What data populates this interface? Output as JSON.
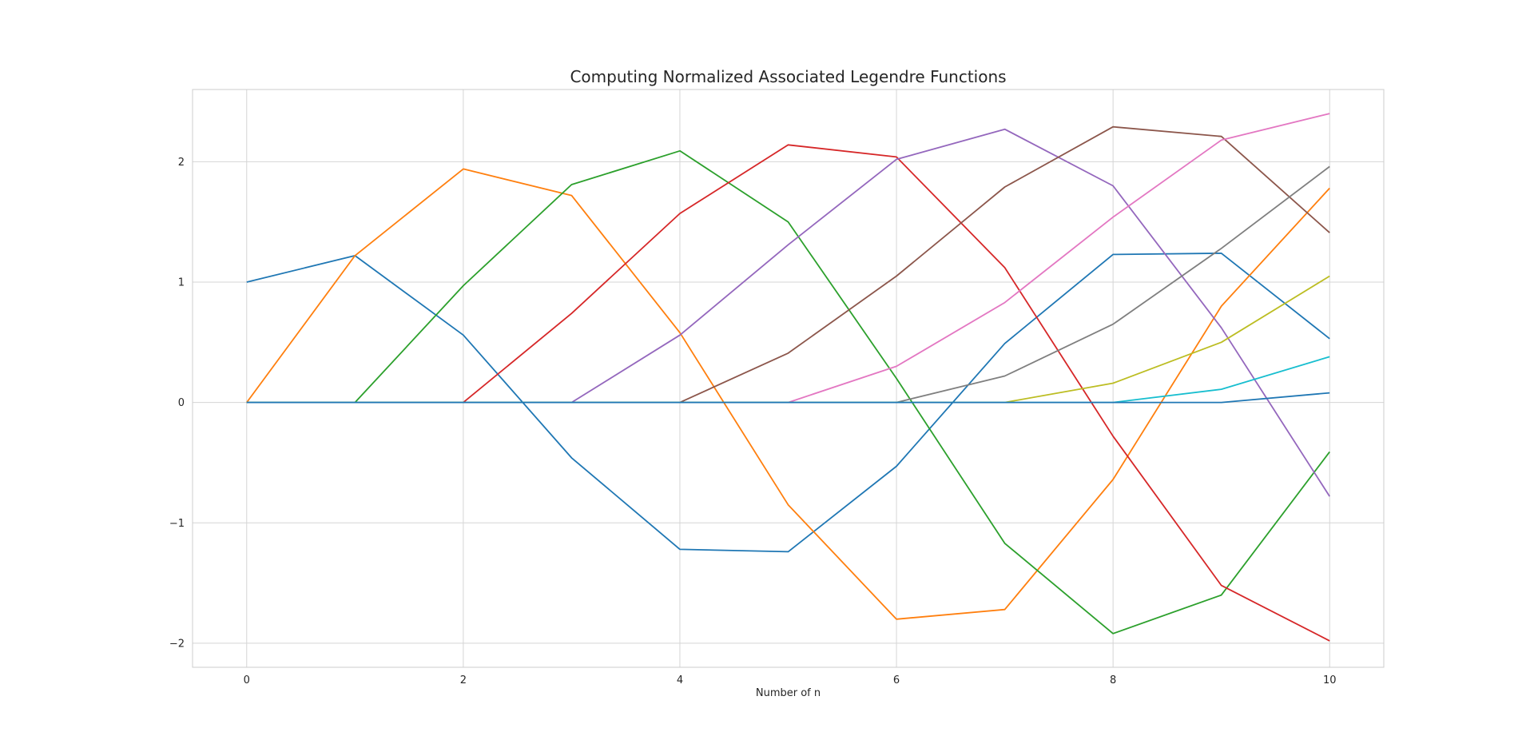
{
  "chart_data": {
    "type": "line",
    "title": "Computing Normalized Associated Legendre Functions",
    "xlabel": "Number of n",
    "ylabel": "",
    "xlim": [
      -0.5,
      10.5
    ],
    "ylim": [
      -2.2,
      2.6
    ],
    "x_ticks": [
      0,
      2,
      4,
      6,
      8,
      10
    ],
    "x_tick_labels": [
      "0",
      "2",
      "4",
      "6",
      "8",
      "10"
    ],
    "y_ticks": [
      -2,
      -1,
      0,
      1,
      2
    ],
    "y_tick_labels": [
      "−2",
      "−1",
      "0",
      "1",
      "2"
    ],
    "grid": true,
    "legend": "none",
    "x": [
      0,
      1,
      2,
      3,
      4,
      5,
      6,
      7,
      8,
      9,
      10
    ],
    "series": [
      {
        "color": "#1f77b4",
        "values": [
          1.0,
          1.22,
          0.56,
          -0.46,
          -1.22,
          -1.24,
          -0.53,
          0.49,
          1.23,
          1.24,
          0.53
        ]
      },
      {
        "color": "#ff7f0e",
        "values": [
          0.0,
          1.22,
          1.94,
          1.72,
          0.58,
          -0.85,
          -1.8,
          -1.72,
          -0.64,
          0.8,
          1.78
        ]
      },
      {
        "color": "#2ca02c",
        "values": [
          0.0,
          0.0,
          0.97,
          1.81,
          2.09,
          1.5,
          0.2,
          -1.17,
          -1.92,
          -1.6,
          -0.41
        ]
      },
      {
        "color": "#d62728",
        "values": [
          0.0,
          0.0,
          0.0,
          0.74,
          1.57,
          2.14,
          2.04,
          1.12,
          -0.28,
          -1.52,
          -1.98
        ]
      },
      {
        "color": "#9467bd",
        "values": [
          0.0,
          0.0,
          0.0,
          0.0,
          0.56,
          1.31,
          2.02,
          2.27,
          1.8,
          0.62,
          -0.78
        ]
      },
      {
        "color": "#8c564b",
        "values": [
          0.0,
          0.0,
          0.0,
          0.0,
          0.0,
          0.41,
          1.05,
          1.79,
          2.29,
          2.21,
          1.41
        ]
      },
      {
        "color": "#e377c2",
        "values": [
          0.0,
          0.0,
          0.0,
          0.0,
          0.0,
          0.0,
          0.3,
          0.83,
          1.54,
          2.18,
          2.4
        ]
      },
      {
        "color": "#7f7f7f",
        "values": [
          0.0,
          0.0,
          0.0,
          0.0,
          0.0,
          0.0,
          0.0,
          0.22,
          0.65,
          1.28,
          1.96
        ]
      },
      {
        "color": "#bcbd22",
        "values": [
          0.0,
          0.0,
          0.0,
          0.0,
          0.0,
          0.0,
          0.0,
          0.0,
          0.16,
          0.5,
          1.05
        ]
      },
      {
        "color": "#17becf",
        "values": [
          0.0,
          0.0,
          0.0,
          0.0,
          0.0,
          0.0,
          0.0,
          0.0,
          0.0,
          0.11,
          0.38
        ]
      },
      {
        "color": "#1f77b4",
        "values": [
          0.0,
          0.0,
          0.0,
          0.0,
          0.0,
          0.0,
          0.0,
          0.0,
          0.0,
          0.0,
          0.08
        ]
      }
    ]
  }
}
